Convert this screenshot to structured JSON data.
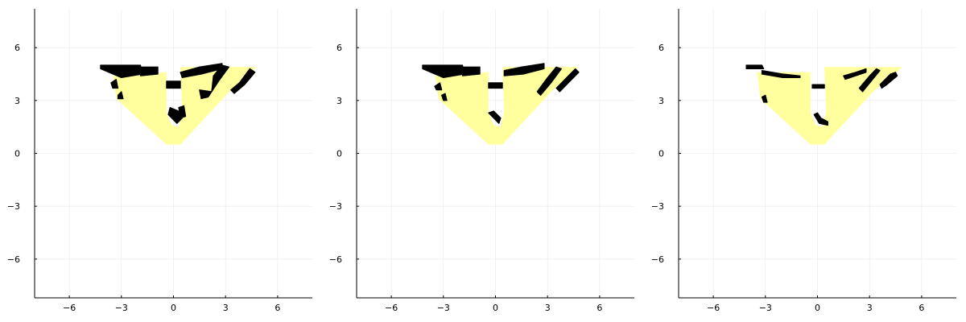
{
  "colors": {
    "background": "#ffffff",
    "free_region": "#ffff9e",
    "occupied": "#000000",
    "grid": "#e8e8e8",
    "axis": "#000000"
  },
  "chart_data": [
    {
      "type": "heatmap",
      "panel": 1,
      "xlim": [
        -8,
        8
      ],
      "ylim": [
        -8.2,
        8.2
      ],
      "xticks": [
        -6,
        -3,
        0,
        3,
        6
      ],
      "yticks": [
        -6,
        -3,
        0,
        3,
        6
      ],
      "xtick_labels": [
        "−6",
        "−3",
        "0",
        "3",
        "6"
      ],
      "ytick_labels": [
        "−6",
        "−3",
        "0",
        "3",
        "6"
      ],
      "grid": true,
      "free_polygons": [
        [
          [
            -3.5,
            4.4
          ],
          [
            -0.4,
            4.6
          ],
          [
            -0.4,
            2.3
          ],
          [
            -0.1,
            1.6
          ],
          [
            0.3,
            1.5
          ],
          [
            0.5,
            2.4
          ],
          [
            0.4,
            4.9
          ],
          [
            4.8,
            4.9
          ],
          [
            3.3,
            3.6
          ],
          [
            0.4,
            0.5
          ],
          [
            -0.4,
            0.5
          ],
          [
            -3.3,
            3.1
          ],
          [
            -3.4,
            4.0
          ]
        ]
      ],
      "occupied_polygons": [
        [
          [
            -4.2,
            5.0
          ],
          [
            -1.9,
            5.0
          ],
          [
            -1.8,
            4.5
          ],
          [
            -3.0,
            4.3
          ],
          [
            -4.2,
            4.8
          ]
        ],
        [
          [
            -1.9,
            4.9
          ],
          [
            -0.9,
            4.9
          ],
          [
            -0.9,
            4.5
          ],
          [
            -1.9,
            4.4
          ]
        ],
        [
          [
            -0.4,
            4.1
          ],
          [
            0.4,
            4.1
          ],
          [
            0.4,
            3.7
          ],
          [
            -0.4,
            3.7
          ]
        ],
        [
          [
            0.4,
            4.6
          ],
          [
            1.5,
            4.9
          ],
          [
            2.8,
            5.1
          ],
          [
            2.8,
            4.8
          ],
          [
            1.6,
            4.5
          ],
          [
            0.5,
            4.3
          ]
        ],
        [
          [
            1.5,
            3.6
          ],
          [
            2.2,
            3.5
          ],
          [
            2.3,
            4.4
          ],
          [
            2.8,
            5.0
          ],
          [
            3.2,
            4.9
          ],
          [
            2.6,
            4.1
          ],
          [
            2.0,
            3.2
          ],
          [
            1.6,
            3.1
          ]
        ],
        [
          [
            3.3,
            3.6
          ],
          [
            3.8,
            4.0
          ],
          [
            4.4,
            4.8
          ],
          [
            4.7,
            4.6
          ],
          [
            4.1,
            3.9
          ],
          [
            3.5,
            3.4
          ]
        ],
        [
          [
            -3.6,
            4.0
          ],
          [
            -3.3,
            4.2
          ],
          [
            -3.2,
            3.7
          ],
          [
            -3.5,
            3.7
          ]
        ],
        [
          [
            -3.2,
            3.3
          ],
          [
            -3.0,
            3.5
          ],
          [
            -2.9,
            3.1
          ],
          [
            -3.2,
            3.1
          ]
        ],
        [
          [
            -0.3,
            2.2
          ],
          [
            0.2,
            1.7
          ],
          [
            0.5,
            2.0
          ],
          [
            0.3,
            2.4
          ],
          [
            -0.2,
            2.6
          ]
        ],
        [
          [
            0.3,
            2.6
          ],
          [
            0.6,
            2.7
          ],
          [
            0.7,
            2.1
          ],
          [
            0.4,
            2.0
          ]
        ]
      ]
    },
    {
      "type": "heatmap",
      "panel": 2,
      "xlim": [
        -8,
        8
      ],
      "ylim": [
        -8.2,
        8.2
      ],
      "xticks": [
        -6,
        -3,
        0,
        3,
        6
      ],
      "yticks": [
        -6,
        -3,
        0,
        3,
        6
      ],
      "xtick_labels": [
        "−6",
        "−3",
        "0",
        "3",
        "6"
      ],
      "ytick_labels": [
        "−6",
        "−3",
        "0",
        "3",
        "6"
      ],
      "grid": true,
      "free_polygons": [
        [
          [
            -3.5,
            4.4
          ],
          [
            -0.4,
            4.6
          ],
          [
            -0.4,
            2.3
          ],
          [
            -0.1,
            1.6
          ],
          [
            0.3,
            1.5
          ],
          [
            0.5,
            2.4
          ],
          [
            0.4,
            4.9
          ],
          [
            4.8,
            4.9
          ],
          [
            3.3,
            3.6
          ],
          [
            0.4,
            0.5
          ],
          [
            -0.4,
            0.5
          ],
          [
            -3.3,
            3.1
          ],
          [
            -3.4,
            4.0
          ]
        ]
      ],
      "occupied_polygons": [
        [
          [
            -4.2,
            5.0
          ],
          [
            -1.9,
            5.0
          ],
          [
            -1.8,
            4.5
          ],
          [
            -3.0,
            4.3
          ],
          [
            -4.2,
            4.8
          ]
        ],
        [
          [
            -1.9,
            4.9
          ],
          [
            -0.9,
            4.9
          ],
          [
            -0.9,
            4.5
          ],
          [
            -1.9,
            4.4
          ]
        ],
        [
          [
            -0.4,
            4.0
          ],
          [
            0.4,
            4.0
          ],
          [
            0.4,
            3.7
          ],
          [
            -0.4,
            3.7
          ]
        ],
        [
          [
            0.5,
            4.7
          ],
          [
            1.5,
            4.9
          ],
          [
            2.8,
            5.1
          ],
          [
            2.8,
            4.8
          ],
          [
            1.6,
            4.5
          ],
          [
            0.5,
            4.4
          ]
        ],
        [
          [
            2.4,
            3.5
          ],
          [
            3.0,
            4.3
          ],
          [
            3.5,
            4.9
          ],
          [
            3.8,
            4.8
          ],
          [
            3.2,
            4.0
          ],
          [
            2.6,
            3.3
          ]
        ],
        [
          [
            3.5,
            3.7
          ],
          [
            4.2,
            4.4
          ],
          [
            4.6,
            4.8
          ],
          [
            4.8,
            4.6
          ],
          [
            4.1,
            3.9
          ],
          [
            3.7,
            3.5
          ]
        ],
        [
          [
            -3.5,
            3.8
          ],
          [
            -3.2,
            4.0
          ],
          [
            -3.1,
            3.6
          ],
          [
            -3.4,
            3.6
          ]
        ],
        [
          [
            -3.1,
            3.3
          ],
          [
            -2.9,
            3.4
          ],
          [
            -2.8,
            3.0
          ],
          [
            -3.0,
            3.0
          ]
        ],
        [
          [
            -0.4,
            2.3
          ],
          [
            0.2,
            1.7
          ],
          [
            0.3,
            2.0
          ],
          [
            -0.1,
            2.4
          ]
        ]
      ]
    },
    {
      "type": "heatmap",
      "panel": 3,
      "xlim": [
        -8,
        8
      ],
      "ylim": [
        -8.2,
        8.2
      ],
      "xticks": [
        -6,
        -3,
        0,
        3,
        6
      ],
      "yticks": [
        -6,
        -3,
        0,
        3,
        6
      ],
      "xtick_labels": [
        "−6",
        "−3",
        "0",
        "3",
        "6"
      ],
      "ytick_labels": [
        "−6",
        "−3",
        "0",
        "3",
        "6"
      ],
      "grid": true,
      "free_polygons": [
        [
          [
            -3.5,
            4.6
          ],
          [
            -0.4,
            4.6
          ],
          [
            -0.4,
            2.3
          ],
          [
            -0.1,
            1.6
          ],
          [
            0.3,
            1.5
          ],
          [
            0.5,
            2.4
          ],
          [
            0.4,
            4.9
          ],
          [
            4.9,
            4.9
          ],
          [
            3.3,
            3.6
          ],
          [
            0.4,
            0.5
          ],
          [
            -0.4,
            0.5
          ],
          [
            -3.3,
            3.1
          ],
          [
            -3.4,
            4.0
          ]
        ]
      ],
      "occupied_polygons": [
        [
          [
            -4.1,
            5.0
          ],
          [
            -3.2,
            5.0
          ],
          [
            -3.1,
            4.8
          ],
          [
            -4.1,
            4.8
          ]
        ],
        [
          [
            -3.2,
            4.7
          ],
          [
            -2.0,
            4.5
          ],
          [
            -1.0,
            4.4
          ],
          [
            -1.0,
            4.3
          ],
          [
            -2.0,
            4.3
          ],
          [
            -3.2,
            4.5
          ]
        ],
        [
          [
            -0.3,
            3.9
          ],
          [
            0.4,
            3.9
          ],
          [
            0.4,
            3.7
          ],
          [
            -0.3,
            3.7
          ]
        ],
        [
          [
            1.5,
            4.4
          ],
          [
            2.2,
            4.6
          ],
          [
            2.8,
            4.8
          ],
          [
            2.8,
            4.6
          ],
          [
            2.2,
            4.4
          ],
          [
            1.6,
            4.2
          ]
        ],
        [
          [
            2.4,
            3.7
          ],
          [
            3.0,
            4.4
          ],
          [
            3.4,
            4.8
          ],
          [
            3.6,
            4.7
          ],
          [
            3.1,
            4.1
          ],
          [
            2.6,
            3.5
          ]
        ],
        [
          [
            3.6,
            3.9
          ],
          [
            4.2,
            4.5
          ],
          [
            4.5,
            4.6
          ],
          [
            4.6,
            4.4
          ],
          [
            4.0,
            3.9
          ],
          [
            3.7,
            3.7
          ]
        ],
        [
          [
            -3.2,
            3.2
          ],
          [
            -3.0,
            3.3
          ],
          [
            -2.9,
            2.9
          ],
          [
            -3.1,
            2.9
          ]
        ],
        [
          [
            -0.2,
            2.2
          ],
          [
            0.1,
            1.7
          ],
          [
            0.6,
            1.6
          ],
          [
            0.6,
            1.8
          ],
          [
            0.2,
            2.0
          ],
          [
            0.0,
            2.3
          ]
        ]
      ]
    }
  ]
}
